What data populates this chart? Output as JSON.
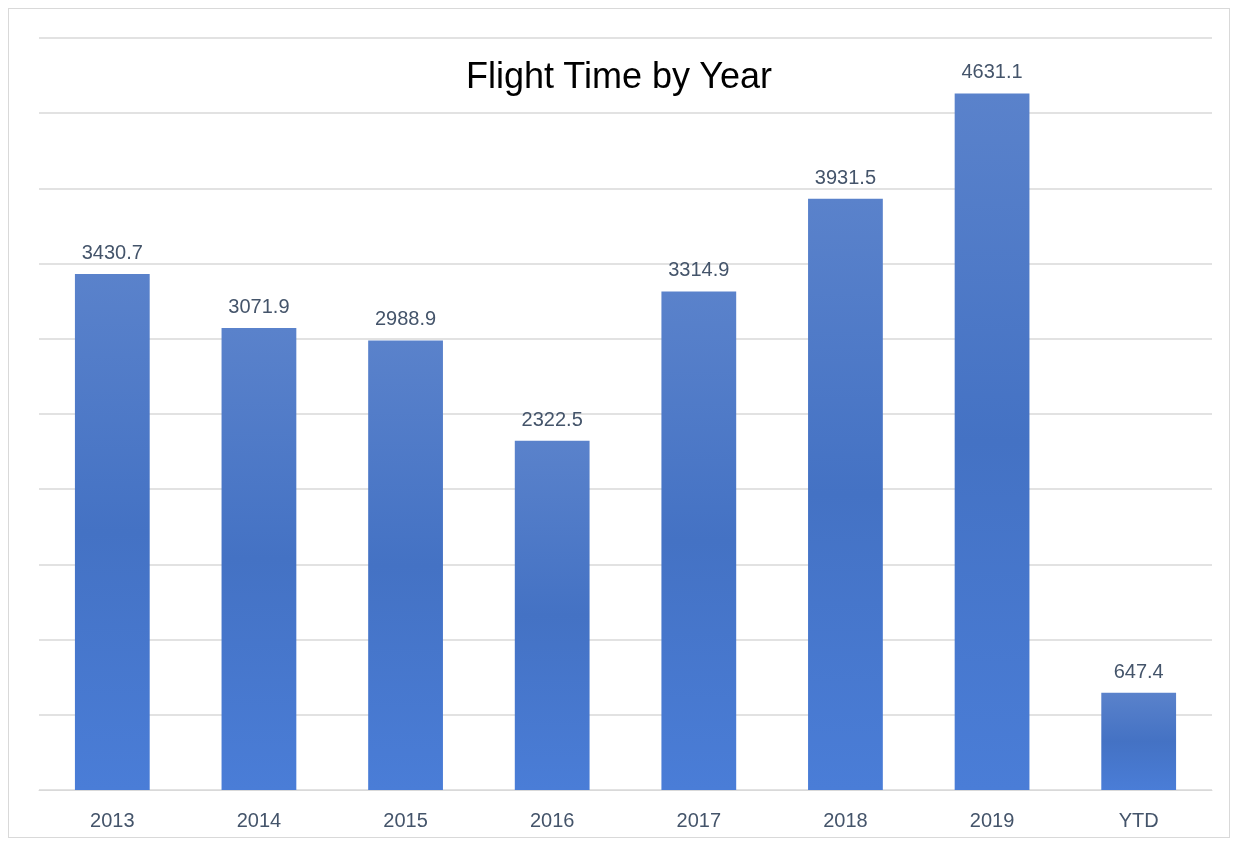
{
  "chart_data": {
    "type": "bar",
    "title": "Flight Time by Year",
    "categories": [
      "2013",
      "2014",
      "2015",
      "2016",
      "2017",
      "2018",
      "2019",
      "YTD"
    ],
    "values": [
      3430.7,
      3071.9,
      2988.9,
      2322.5,
      3314.9,
      3931.5,
      4631.1,
      647.4
    ],
    "color": "#4472c4",
    "ylim": [
      0,
      5000
    ],
    "yticks": [
      {
        "value": 0,
        "label": null
      },
      {
        "value": 500,
        "label": null
      },
      {
        "value": 1000,
        "label": null
      },
      {
        "value": 1500,
        "label": null
      },
      {
        "value": 2000,
        "label": null
      },
      {
        "value": 2500,
        "label": null
      },
      {
        "value": 3000,
        "label": null
      },
      {
        "value": 3500,
        "label": null
      },
      {
        "value": 4000,
        "label": null
      },
      {
        "value": 4500,
        "label": null
      },
      {
        "value": 5000,
        "label": null
      }
    ],
    "grid": "y",
    "tick_labels": "x",
    "data_labels": true
  }
}
